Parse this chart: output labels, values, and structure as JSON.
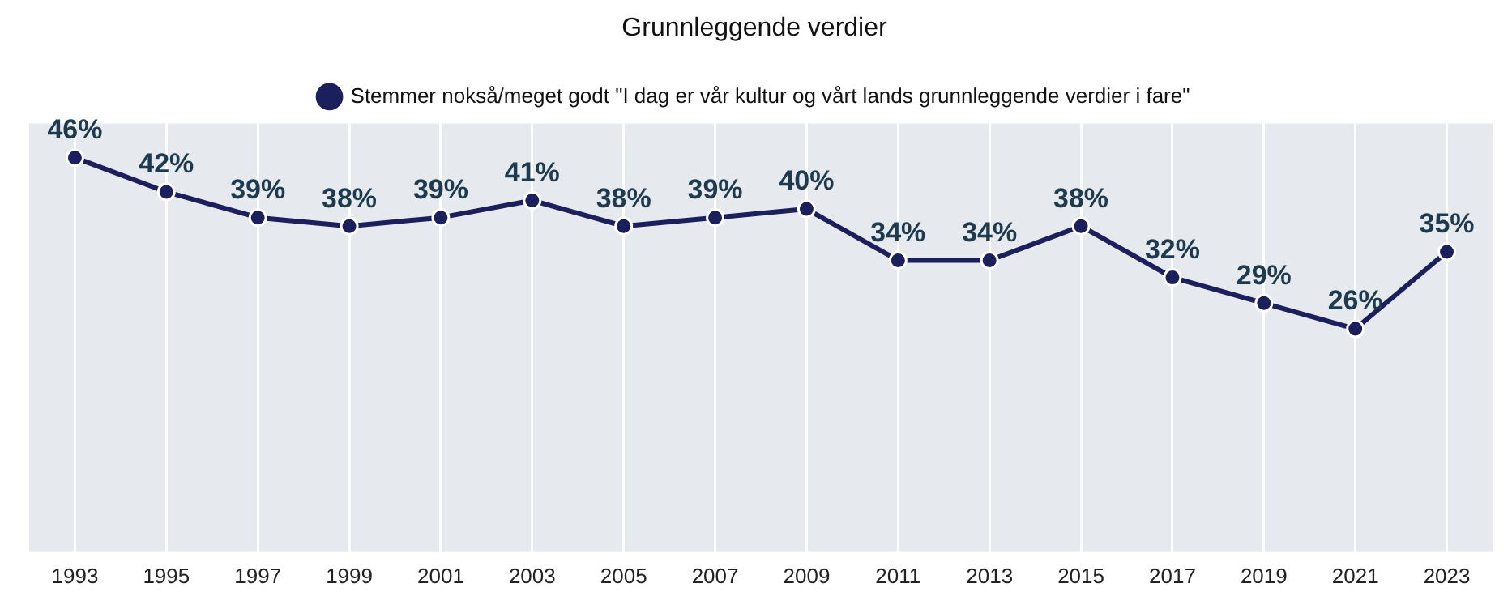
{
  "chart_data": {
    "type": "line",
    "title": "Grunnleggende verdier",
    "categories": [
      "1993",
      "1995",
      "1997",
      "1999",
      "2001",
      "2003",
      "2005",
      "2007",
      "2009",
      "2011",
      "2013",
      "2015",
      "2017",
      "2019",
      "2021",
      "2023"
    ],
    "series": [
      {
        "name": "Stemmer nokså/meget godt \"I dag er vår kultur og vårt lands grunnleggende verdier i fare\"",
        "color": "#1b1f5c",
        "values": [
          46,
          42,
          39,
          38,
          39,
          41,
          38,
          39,
          40,
          34,
          34,
          38,
          32,
          29,
          26,
          35
        ],
        "value_labels": [
          "46%",
          "42%",
          "39%",
          "38%",
          "39%",
          "41%",
          "38%",
          "39%",
          "40%",
          "34%",
          "34%",
          "38%",
          "32%",
          "29%",
          "26%",
          "35%"
        ]
      }
    ],
    "tick_labels": "x",
    "grid": "x",
    "legend": "top",
    "marker": "circle",
    "line_style": "solid"
  }
}
